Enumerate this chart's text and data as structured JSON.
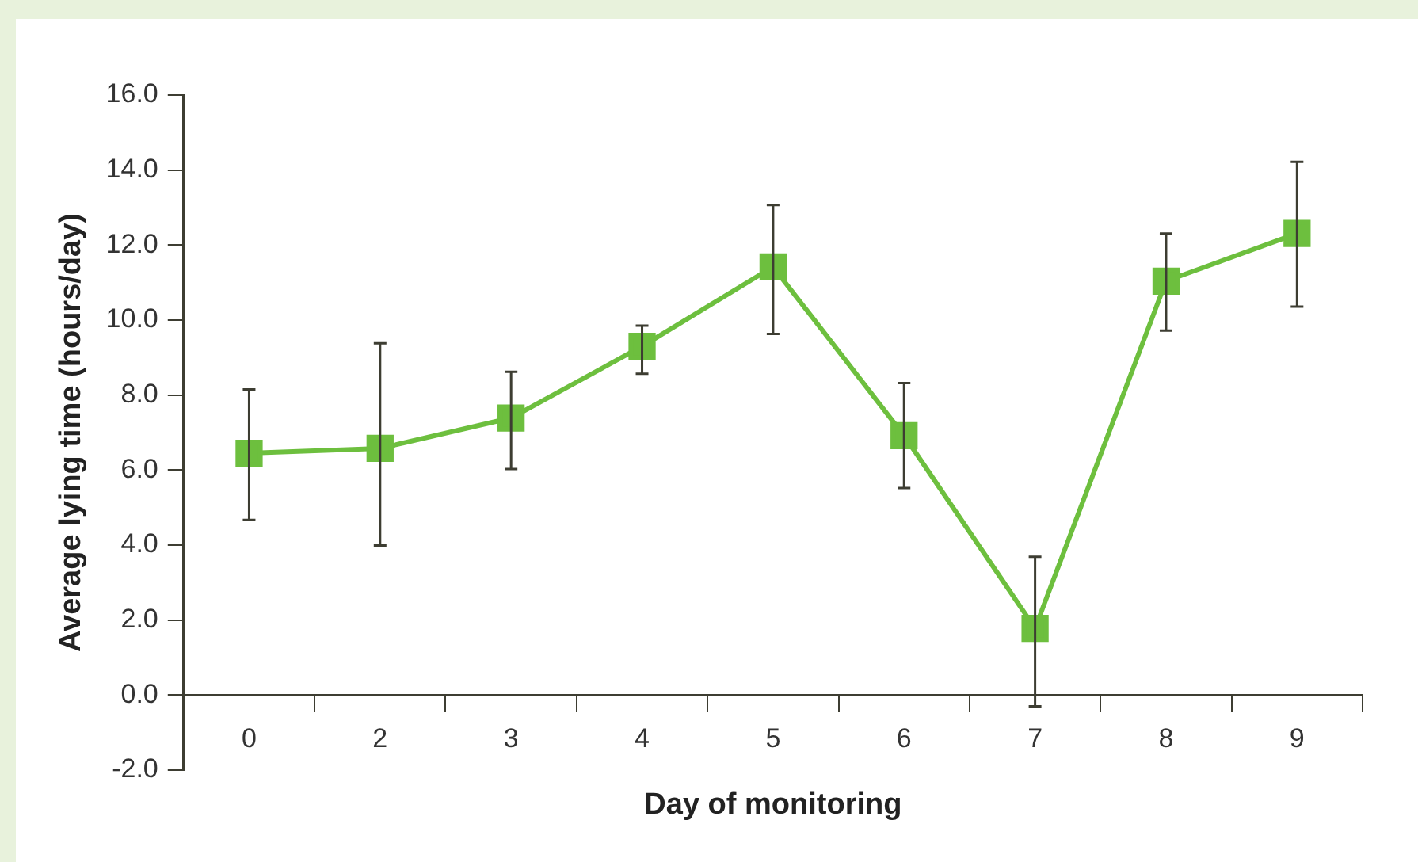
{
  "chart_data": {
    "type": "line",
    "xlabel": "Day of monitoring",
    "ylabel": "Average lying time (hours/day)",
    "categories": [
      "0",
      "2",
      "3",
      "4",
      "5",
      "6",
      "7",
      "8",
      "9"
    ],
    "series": [
      {
        "color": "#6dbf3e",
        "values": [
          6.45,
          6.58,
          7.39,
          9.3,
          11.42,
          6.92,
          1.78,
          11.04,
          12.31
        ],
        "errors": [
          [
            4.67,
            8.15
          ],
          [
            3.99,
            9.38
          ],
          [
            6.03,
            8.62
          ],
          [
            8.57,
            9.85
          ],
          [
            9.63,
            13.07
          ],
          [
            5.52,
            8.32
          ],
          [
            -0.3,
            3.69
          ],
          [
            9.72,
            12.31
          ],
          [
            10.36,
            14.22
          ]
        ]
      }
    ],
    "ylim": [
      -2,
      16
    ],
    "yticks": [
      {
        "value": -2,
        "label": "-2.0"
      },
      {
        "value": 0,
        "label": "0.0"
      },
      {
        "value": 2,
        "label": "2.0"
      },
      {
        "value": 4,
        "label": "4.0"
      },
      {
        "value": 6,
        "label": "6.0"
      },
      {
        "value": 8,
        "label": "8.0"
      },
      {
        "value": 10,
        "label": "10.0"
      },
      {
        "value": 12,
        "label": "12.0"
      },
      {
        "value": 14,
        "label": "14.0"
      },
      {
        "value": 16,
        "label": "16.0"
      }
    ],
    "marker": "square",
    "line_style": "solid",
    "legend": false
  }
}
